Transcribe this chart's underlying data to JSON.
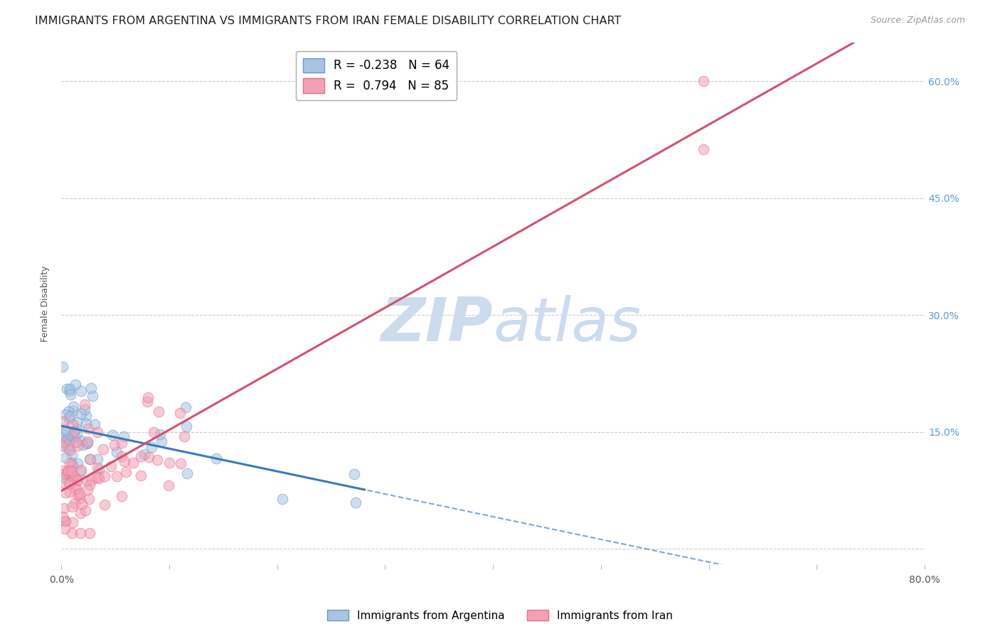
{
  "title": "IMMIGRANTS FROM ARGENTINA VS IMMIGRANTS FROM IRAN FEMALE DISABILITY CORRELATION CHART",
  "source": "Source: ZipAtlas.com",
  "ylabel": "Female Disability",
  "xlim": [
    0.0,
    0.8
  ],
  "ylim": [
    -0.02,
    0.65
  ],
  "ytick_positions": [
    0.0,
    0.15,
    0.3,
    0.45,
    0.6
  ],
  "ytick_labels": [
    "",
    "15.0%",
    "30.0%",
    "45.0%",
    "60.0%"
  ],
  "xtick_positions": [
    0.0,
    0.1,
    0.2,
    0.3,
    0.4,
    0.5,
    0.6,
    0.7,
    0.8
  ],
  "xtick_labels": [
    "0.0%",
    "",
    "",
    "",
    "",
    "",
    "",
    "",
    "80.0%"
  ],
  "argentina_R": -0.238,
  "argentina_N": 64,
  "iran_R": 0.794,
  "iran_N": 85,
  "argentina_color": "#a8c4e0",
  "iran_color": "#f4a0b4",
  "argentina_edge": "#6699cc",
  "iran_edge": "#e07090",
  "regression_argentina_color": "#3a7abf",
  "regression_iran_color": "#d45070",
  "watermark_color": "#ccdcee",
  "title_fontsize": 11.5,
  "axis_label_fontsize": 9,
  "tick_fontsize": 10,
  "legend_fontsize": 12,
  "right_tick_color": "#5b9bd5",
  "background_color": "#ffffff",
  "grid_color": "#cccccc",
  "iran_line_intercept": 0.075,
  "iran_line_slope": 0.72,
  "arg_line_intercept": 0.155,
  "arg_line_slope": -0.3
}
